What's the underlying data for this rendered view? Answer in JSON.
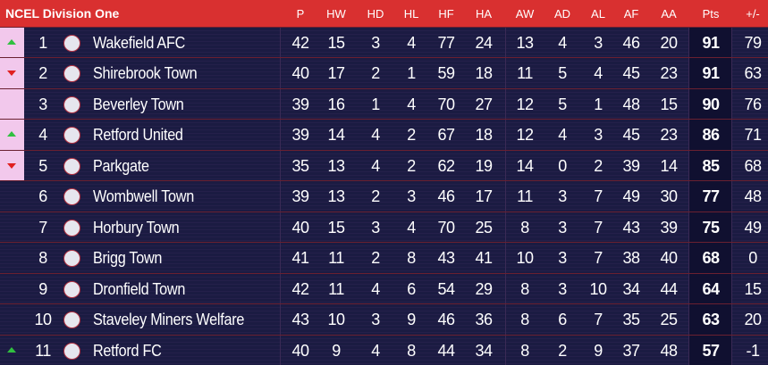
{
  "header": {
    "title": "NCEL Division One",
    "columns": [
      "P",
      "HW",
      "HD",
      "HL",
      "HF",
      "HA",
      "AW",
      "AD",
      "AL",
      "AF",
      "AA",
      "Pts",
      "+/-"
    ]
  },
  "table": {
    "rows": [
      {
        "pos": 1,
        "team": "Wakefield AFC",
        "move": "up",
        "stats": [
          42,
          15,
          3,
          4,
          77,
          24,
          13,
          4,
          3,
          46,
          20,
          91,
          79
        ]
      },
      {
        "pos": 2,
        "team": "Shirebrook Town",
        "move": "down",
        "stats": [
          40,
          17,
          2,
          1,
          59,
          18,
          11,
          5,
          4,
          45,
          23,
          91,
          63
        ]
      },
      {
        "pos": 3,
        "team": "Beverley Town",
        "move": null,
        "stats": [
          39,
          16,
          1,
          4,
          70,
          27,
          12,
          5,
          1,
          48,
          15,
          90,
          76
        ]
      },
      {
        "pos": 4,
        "team": "Retford United",
        "move": "up",
        "stats": [
          39,
          14,
          4,
          2,
          67,
          18,
          12,
          4,
          3,
          45,
          23,
          86,
          71
        ]
      },
      {
        "pos": 5,
        "team": "Parkgate",
        "move": "down",
        "stats": [
          35,
          13,
          4,
          2,
          62,
          19,
          14,
          0,
          2,
          39,
          14,
          85,
          68
        ]
      },
      {
        "pos": 6,
        "team": "Wombwell Town",
        "move": null,
        "stats": [
          39,
          13,
          2,
          3,
          46,
          17,
          11,
          3,
          7,
          49,
          30,
          77,
          48
        ]
      },
      {
        "pos": 7,
        "team": "Horbury Town",
        "move": null,
        "stats": [
          40,
          15,
          3,
          4,
          70,
          25,
          8,
          3,
          7,
          43,
          39,
          75,
          49
        ]
      },
      {
        "pos": 8,
        "team": "Brigg Town",
        "move": null,
        "stats": [
          41,
          11,
          2,
          8,
          43,
          41,
          10,
          3,
          7,
          38,
          40,
          68,
          0
        ]
      },
      {
        "pos": 9,
        "team": "Dronfield Town",
        "move": null,
        "stats": [
          42,
          11,
          4,
          6,
          54,
          29,
          8,
          3,
          10,
          34,
          44,
          64,
          15
        ]
      },
      {
        "pos": 10,
        "team": "Staveley Miners Welfare",
        "move": null,
        "stats": [
          43,
          10,
          3,
          9,
          46,
          36,
          8,
          6,
          7,
          35,
          25,
          63,
          20
        ]
      },
      {
        "pos": 11,
        "team": "Retford FC",
        "move": "up",
        "stats": [
          40,
          9,
          4,
          8,
          44,
          34,
          8,
          2,
          9,
          37,
          48,
          57,
          -1
        ]
      }
    ]
  }
}
